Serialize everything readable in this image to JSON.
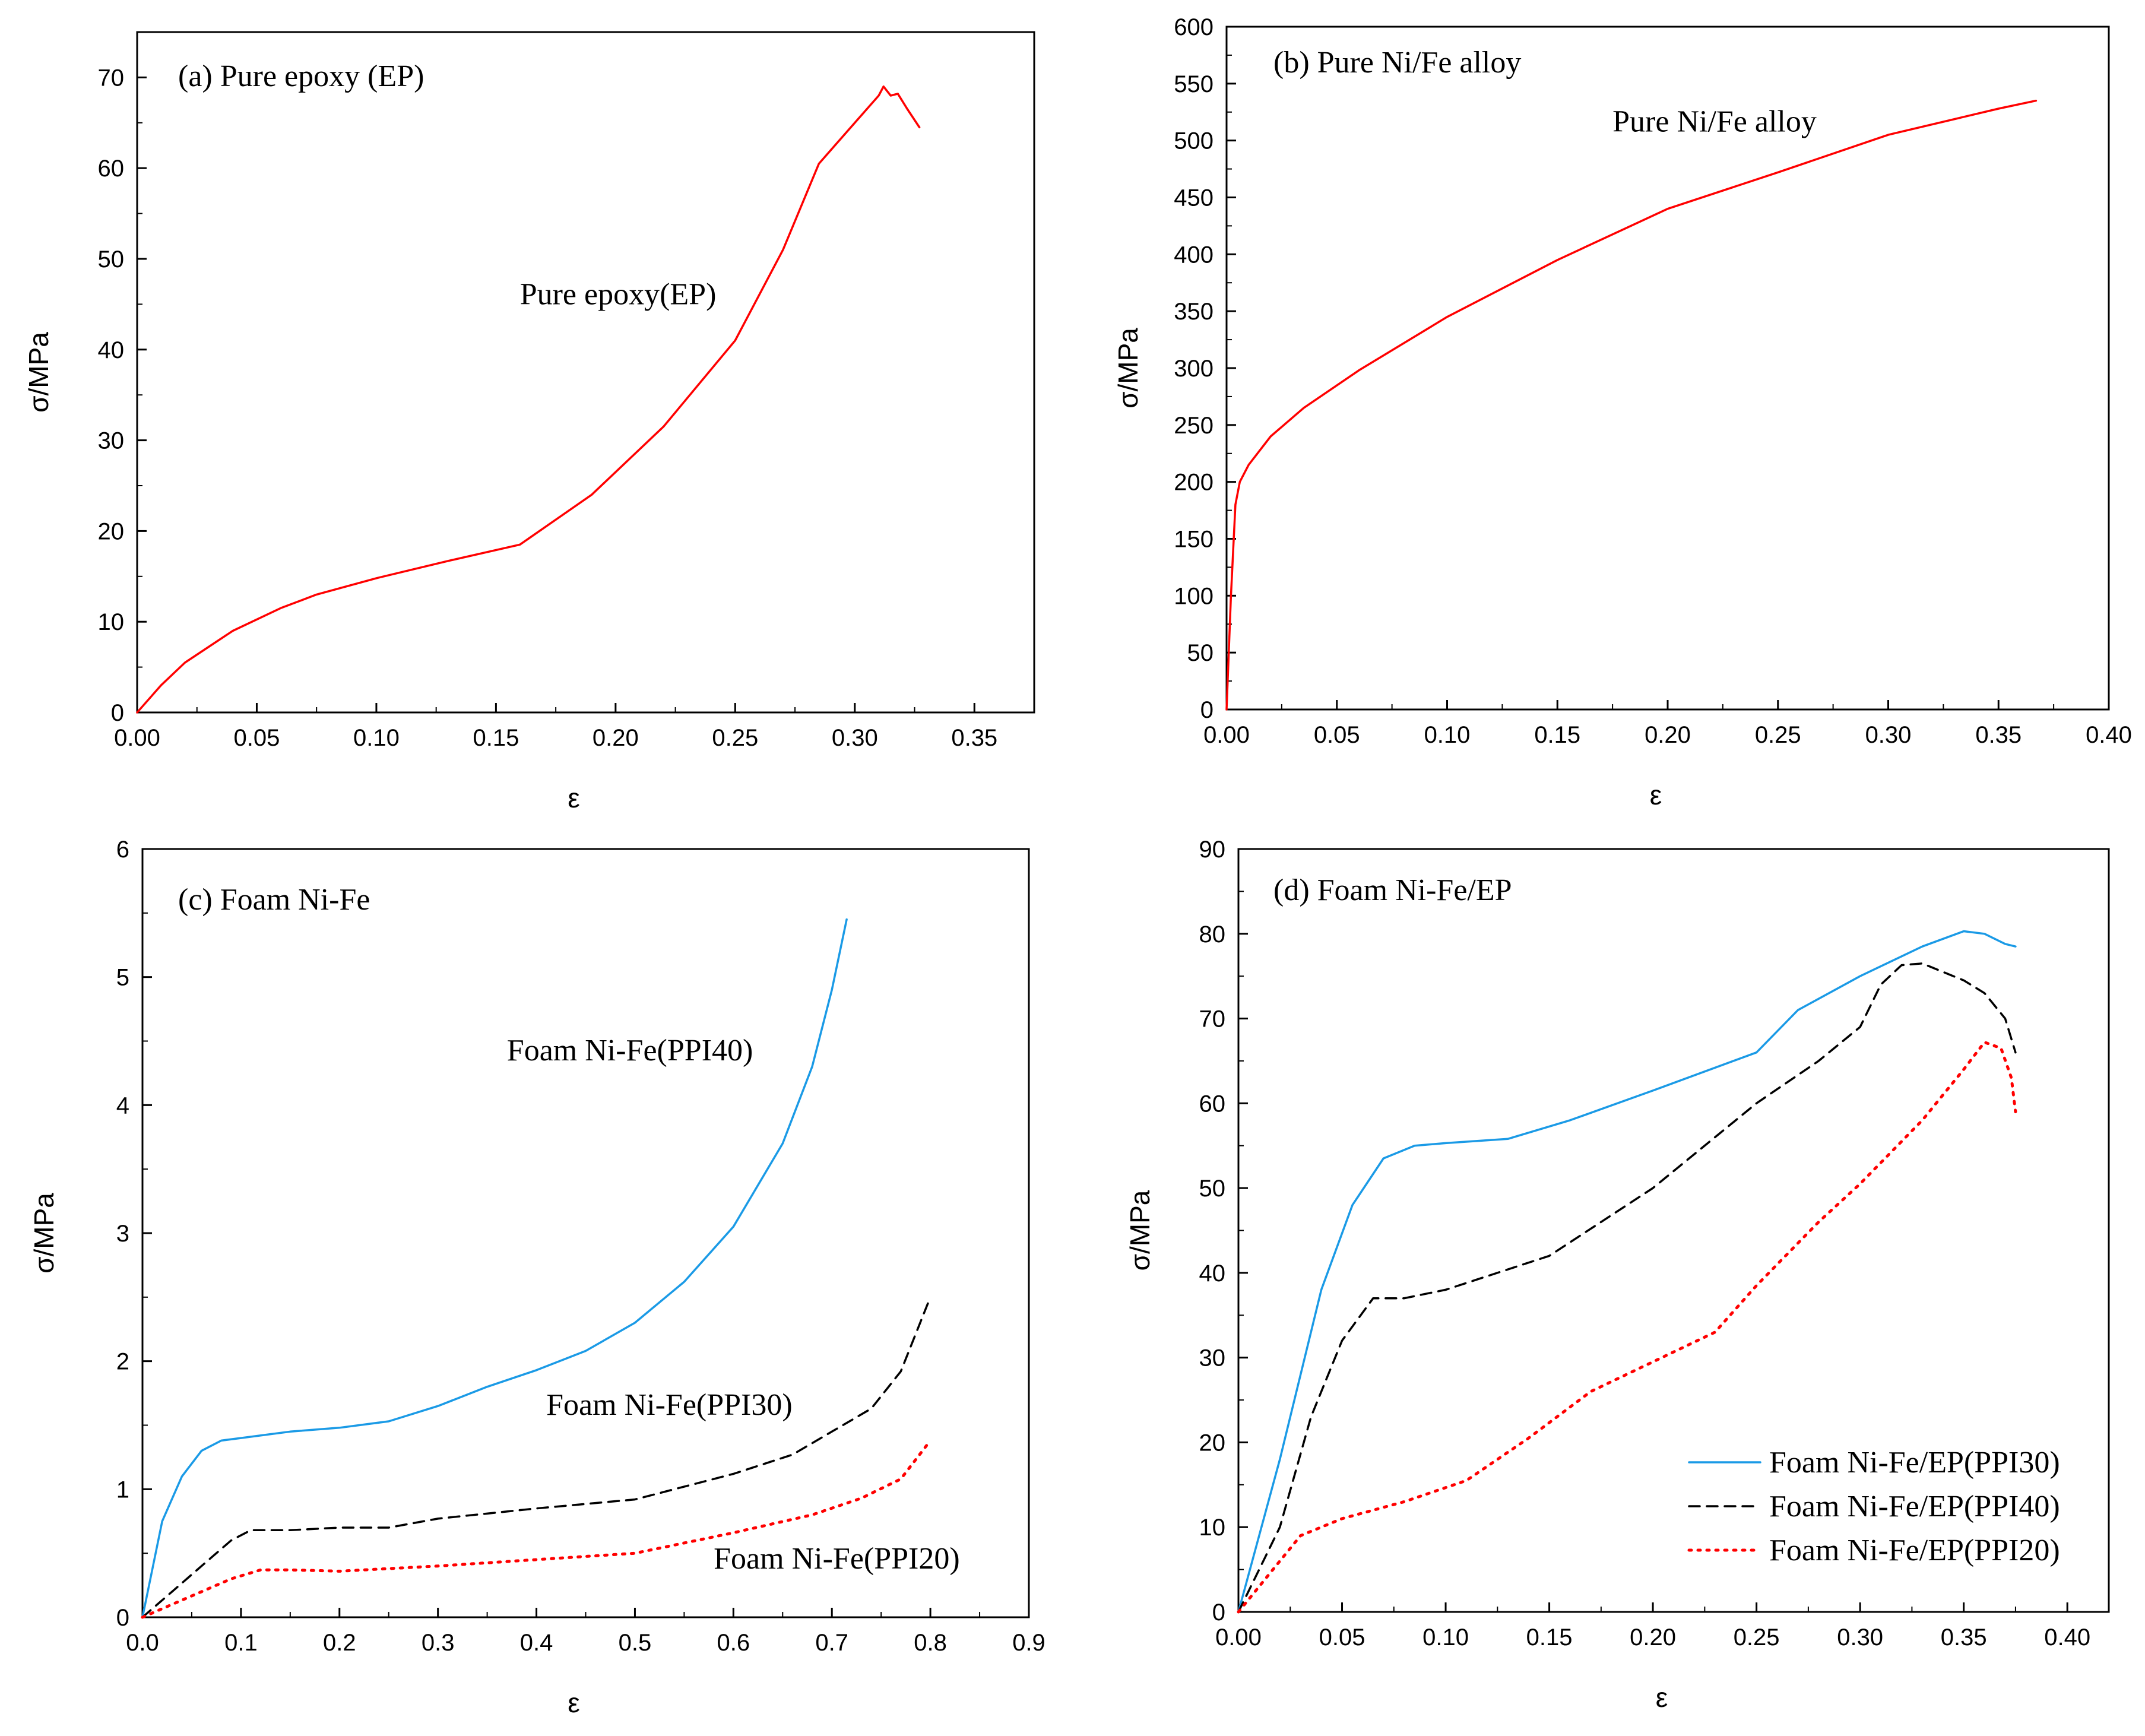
{
  "chart_data": [
    {
      "id": "a",
      "type": "line",
      "title": "(a) Pure epoxy (EP)",
      "xlabel": "ε",
      "ylabel": "σ/MPa",
      "xlim": [
        0,
        0.375
      ],
      "ylim": [
        0,
        75
      ],
      "xticks": [
        0,
        0.05,
        0.1,
        0.15,
        0.2,
        0.25,
        0.3,
        0.35
      ],
      "xtick_labels": [
        "0.00",
        "0.05",
        "0.10",
        "0.15",
        "0.20",
        "0.25",
        "0.30",
        "0.35"
      ],
      "yticks": [
        0,
        10,
        20,
        30,
        40,
        50,
        60,
        70
      ],
      "ytick_labels": [
        "0",
        "10",
        "20",
        "30",
        "40",
        "50",
        "60",
        "70"
      ],
      "annotations": [
        {
          "text": "Pure epoxy(EP)",
          "x": 0.16,
          "y": 45
        }
      ],
      "legend": null,
      "series": [
        {
          "name": "Pure epoxy(EP)",
          "color": "#ff0000",
          "style": "solid",
          "x": [
            0,
            0.01,
            0.02,
            0.04,
            0.06,
            0.075,
            0.1,
            0.13,
            0.16,
            0.19,
            0.22,
            0.25,
            0.27,
            0.285,
            0.3,
            0.31,
            0.312,
            0.315,
            0.318,
            0.322,
            0.327
          ],
          "y": [
            0,
            3,
            5.5,
            9,
            11.5,
            13,
            14.8,
            16.7,
            18.5,
            24,
            31.5,
            41,
            51,
            60.5,
            65,
            68,
            69,
            68,
            68.2,
            66.5,
            64.5
          ]
        }
      ]
    },
    {
      "id": "b",
      "type": "line",
      "title": "(b) Pure Ni/Fe alloy",
      "xlabel": "ε",
      "ylabel": "σ/MPa",
      "xlim": [
        0,
        0.4
      ],
      "ylim": [
        0,
        600
      ],
      "xticks": [
        0,
        0.05,
        0.1,
        0.15,
        0.2,
        0.25,
        0.3,
        0.35,
        0.4
      ],
      "xtick_labels": [
        "0.00",
        "0.05",
        "0.10",
        "0.15",
        "0.20",
        "0.25",
        "0.30",
        "0.35",
        "0.40"
      ],
      "yticks": [
        0,
        50,
        100,
        150,
        200,
        250,
        300,
        350,
        400,
        450,
        500,
        550,
        600
      ],
      "ytick_labels": [
        "0",
        "50",
        "100",
        "150",
        "200",
        "250",
        "300",
        "350",
        "400",
        "450",
        "500",
        "550",
        "600"
      ],
      "annotations": [
        {
          "text": "Pure Ni/Fe alloy",
          "x": 0.175,
          "y": 508
        }
      ],
      "legend": null,
      "series": [
        {
          "name": "Pure Ni/Fe alloy",
          "color": "#ff0000",
          "style": "solid",
          "x": [
            0,
            0.002,
            0.004,
            0.006,
            0.01,
            0.02,
            0.035,
            0.06,
            0.1,
            0.15,
            0.2,
            0.25,
            0.3,
            0.35,
            0.367
          ],
          "y": [
            0,
            100,
            180,
            200,
            215,
            240,
            265,
            298,
            345,
            395,
            440,
            472,
            505,
            528,
            535
          ]
        }
      ]
    },
    {
      "id": "c",
      "type": "line",
      "title": "(c) Foam Ni-Fe",
      "xlabel": "ε",
      "ylabel": "σ/MPa",
      "xlim": [
        0,
        0.9
      ],
      "ylim": [
        0,
        6
      ],
      "xticks": [
        0,
        0.1,
        0.2,
        0.3,
        0.4,
        0.5,
        0.6,
        0.7,
        0.8,
        0.9
      ],
      "xtick_labels": [
        "0.0",
        "0.1",
        "0.2",
        "0.3",
        "0.4",
        "0.5",
        "0.6",
        "0.7",
        "0.8",
        "0.9"
      ],
      "yticks": [
        0,
        1,
        2,
        3,
        4,
        5,
        6
      ],
      "ytick_labels": [
        "0",
        "1",
        "2",
        "3",
        "4",
        "5",
        "6"
      ],
      "annotations": [
        {
          "text": "Foam Ni-Fe(PPI40)",
          "x": 0.37,
          "y": 4.35
        },
        {
          "text": "Foam Ni-Fe(PPI30)",
          "x": 0.41,
          "y": 1.58
        },
        {
          "text": "Foam Ni-Fe(PPI20)",
          "x": 0.58,
          "y": 0.38
        }
      ],
      "legend": null,
      "series": [
        {
          "name": "Foam Ni-Fe(PPI40)",
          "color": "#1a9ae6",
          "style": "solid",
          "x": [
            0,
            0.02,
            0.04,
            0.06,
            0.08,
            0.1,
            0.15,
            0.2,
            0.25,
            0.3,
            0.35,
            0.4,
            0.45,
            0.5,
            0.55,
            0.6,
            0.65,
            0.68,
            0.7,
            0.715
          ],
          "y": [
            0,
            0.75,
            1.1,
            1.3,
            1.38,
            1.4,
            1.45,
            1.48,
            1.53,
            1.65,
            1.8,
            1.93,
            2.08,
            2.3,
            2.62,
            3.05,
            3.7,
            4.3,
            4.9,
            5.45
          ]
        },
        {
          "name": "Foam Ni-Fe(PPI30)",
          "color": "#000000",
          "style": "dashed",
          "x": [
            0,
            0.03,
            0.06,
            0.09,
            0.11,
            0.15,
            0.2,
            0.25,
            0.3,
            0.4,
            0.5,
            0.6,
            0.66,
            0.7,
            0.74,
            0.77,
            0.8
          ],
          "y": [
            0,
            0.2,
            0.4,
            0.6,
            0.68,
            0.68,
            0.7,
            0.7,
            0.77,
            0.85,
            0.92,
            1.12,
            1.27,
            1.45,
            1.63,
            1.92,
            2.5
          ]
        },
        {
          "name": "Foam Ni-Fe(PPI20)",
          "color": "#ff0000",
          "style": "dotted",
          "x": [
            0,
            0.03,
            0.06,
            0.09,
            0.12,
            0.15,
            0.2,
            0.3,
            0.4,
            0.5,
            0.6,
            0.68,
            0.73,
            0.77,
            0.8
          ],
          "y": [
            0,
            0.1,
            0.2,
            0.3,
            0.37,
            0.37,
            0.36,
            0.4,
            0.45,
            0.5,
            0.66,
            0.8,
            0.93,
            1.08,
            1.38
          ]
        }
      ]
    },
    {
      "id": "d",
      "type": "line",
      "title": "(d) Foam Ni-Fe/EP",
      "xlabel": "ε",
      "ylabel": "σ/MPa",
      "xlim": [
        0,
        0.42
      ],
      "ylim": [
        0,
        90
      ],
      "xticks": [
        0,
        0.05,
        0.1,
        0.15,
        0.2,
        0.25,
        0.3,
        0.35,
        0.4
      ],
      "xtick_labels": [
        "0.00",
        "0.05",
        "0.10",
        "0.15",
        "0.20",
        "0.25",
        "0.30",
        "0.35",
        "0.40"
      ],
      "yticks": [
        0,
        10,
        20,
        30,
        40,
        50,
        60,
        70,
        80,
        90
      ],
      "ytick_labels": [
        "0",
        "10",
        "20",
        "30",
        "40",
        "50",
        "60",
        "70",
        "80",
        "90"
      ],
      "annotations": [],
      "legend": "bottom-right",
      "series": [
        {
          "name": "Foam Ni-Fe/EP(PPI30)",
          "color": "#1a9ae6",
          "style": "solid",
          "x": [
            0,
            0.02,
            0.04,
            0.055,
            0.07,
            0.085,
            0.1,
            0.13,
            0.16,
            0.2,
            0.25,
            0.27,
            0.3,
            0.33,
            0.35,
            0.36,
            0.37,
            0.375
          ],
          "y": [
            0,
            18,
            38,
            48,
            53.5,
            55,
            55.3,
            55.8,
            58,
            61.5,
            66,
            71,
            75,
            78.5,
            80.3,
            80,
            78.8,
            78.5
          ]
        },
        {
          "name": "Foam Ni-Fe/EP(PPI40)",
          "color": "#000000",
          "style": "dashed",
          "x": [
            0,
            0.02,
            0.035,
            0.05,
            0.065,
            0.08,
            0.1,
            0.15,
            0.2,
            0.25,
            0.28,
            0.3,
            0.31,
            0.32,
            0.33,
            0.35,
            0.36,
            0.37,
            0.375
          ],
          "y": [
            0,
            10,
            23,
            32,
            37,
            37,
            38,
            42,
            50,
            60,
            65,
            69,
            74,
            76.3,
            76.5,
            74.5,
            73,
            70,
            66
          ]
        },
        {
          "name": "Foam Ni-Fe/EP(PPI20)",
          "color": "#ff0000",
          "style": "dotted",
          "x": [
            0,
            0.01,
            0.02,
            0.03,
            0.05,
            0.08,
            0.11,
            0.14,
            0.17,
            0.2,
            0.23,
            0.25,
            0.28,
            0.3,
            0.33,
            0.35,
            0.36,
            0.368,
            0.373,
            0.375
          ],
          "y": [
            0,
            3,
            6,
            9,
            11,
            13,
            15.5,
            20.5,
            26,
            29.5,
            33,
            38.5,
            46,
            50.5,
            58,
            64,
            67.2,
            66.5,
            63,
            59
          ]
        }
      ]
    }
  ]
}
